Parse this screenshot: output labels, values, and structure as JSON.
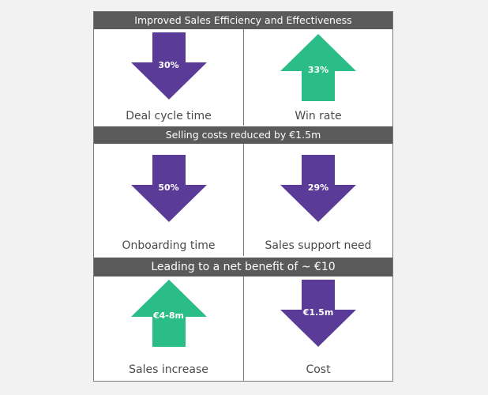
{
  "colors": {
    "down_arrow": "#5b3b98",
    "up_arrow": "#2bbd87",
    "header_bg": "#5a5a5a",
    "label_text": "#4a4a4a"
  },
  "sections": [
    {
      "header": "Improved Sales Efficiency and Effectiveness",
      "items": [
        {
          "direction": "down",
          "value": "30%",
          "label": "Deal cycle time"
        },
        {
          "direction": "up",
          "value": "33%",
          "label": "Win rate"
        }
      ]
    },
    {
      "header": "Selling costs reduced by €1.5m",
      "items": [
        {
          "direction": "down",
          "value": "50%",
          "label": "Onboarding time"
        },
        {
          "direction": "down",
          "value": "29%",
          "label": "Sales support need"
        }
      ]
    },
    {
      "header": "Leading to a net benefit of ~ €10",
      "items": [
        {
          "direction": "up",
          "value": "€4-8m",
          "label": "Sales increase"
        },
        {
          "direction": "down",
          "value": "€1.5m",
          "label": "Cost"
        }
      ]
    }
  ]
}
